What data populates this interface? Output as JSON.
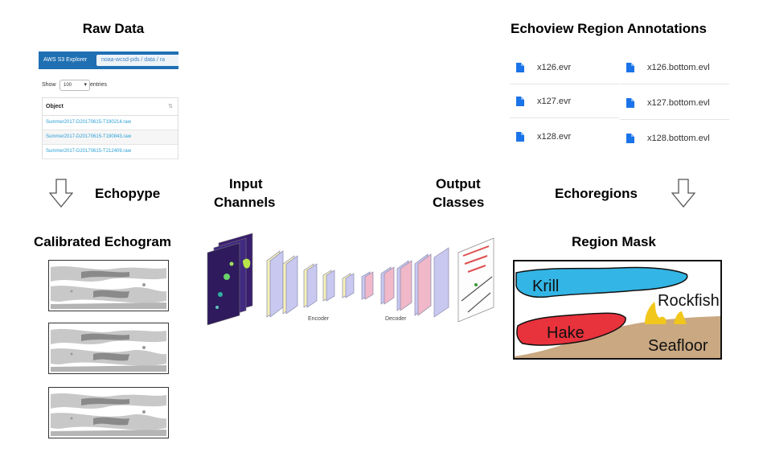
{
  "titles": {
    "raw_data": "Raw Data",
    "annotations": "Echoview Region Annotations",
    "calibrated": "Calibrated Echogram",
    "region_mask": "Region Mask"
  },
  "labels": {
    "echopype": "Echopype",
    "echoregions": "Echoregions",
    "input_line1": "Input",
    "input_line2": "Channels",
    "output_line1": "Output",
    "output_line2": "Classes",
    "encoder": "Encoder",
    "decoder": "Decoder"
  },
  "s3": {
    "brand": "AWS S3 Explorer",
    "breadcrumb": "noaa-wcsd-pds  /  data  /  ra",
    "show": "Show",
    "show_value": "100",
    "entries": "entries",
    "column": "Object",
    "rows": [
      "Summer2017-D20170615-T190214.raw",
      "Summer2017-D20170615-T190843.raw",
      "Summer2017-D20170615-T212409.raw"
    ]
  },
  "files": {
    "left": [
      "x126.evr",
      "x127.evr",
      "x128.evr"
    ],
    "right": [
      "x126.bottom.evl",
      "x127.bottom.evl",
      "x128.bottom.evl"
    ]
  },
  "mask_classes": [
    "Krill",
    "Rockfish",
    "Hake",
    "Seafloor"
  ],
  "colors": {
    "s3_bar": "#1f6fb3",
    "file_icon": "#1a73e8",
    "krill": "#33b5e5",
    "hake": "#e8323c",
    "rockfish": "#f2c71c",
    "seafloor": "#c9a882",
    "echogram_light": "#c8c8c8",
    "echogram_dark": "#8a8a8a"
  }
}
